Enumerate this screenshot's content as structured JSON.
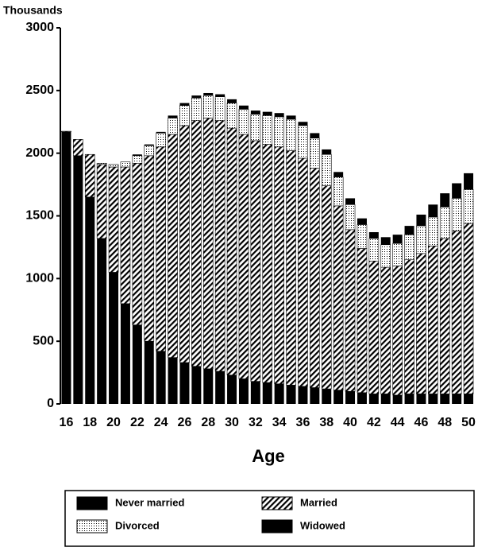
{
  "chart_data": {
    "type": "stacked-bar",
    "title": "Thousands",
    "x_label": "Age",
    "categories": [
      "16",
      null,
      "18",
      null,
      "20",
      null,
      "22",
      null,
      "24",
      null,
      "26",
      null,
      "28",
      null,
      "30",
      null,
      "32",
      null,
      "34",
      null,
      "36",
      null,
      "38",
      null,
      "40",
      null,
      "42",
      null,
      "44",
      null,
      "46",
      null,
      "48",
      null,
      "50"
    ],
    "series": [
      {
        "name": "Never married",
        "color": "#000000",
        "pattern": "solid",
        "values": [
          2170,
          1980,
          1650,
          1320,
          1050,
          800,
          630,
          500,
          420,
          370,
          330,
          300,
          280,
          260,
          230,
          200,
          180,
          170,
          160,
          150,
          140,
          130,
          120,
          110,
          100,
          90,
          80,
          80,
          70,
          80,
          80,
          80,
          80,
          80,
          80
        ]
      },
      {
        "name": "Married",
        "color": "#000000",
        "pattern": "hatch",
        "values": [
          5,
          130,
          340,
          590,
          840,
          1090,
          1290,
          1480,
          1630,
          1780,
          1890,
          1960,
          2000,
          2000,
          1970,
          1950,
          1920,
          1900,
          1890,
          1870,
          1820,
          1750,
          1620,
          1470,
          1290,
          1150,
          1060,
          1010,
          1030,
          1070,
          1120,
          1180,
          1240,
          1300,
          1360
        ]
      },
      {
        "name": "Divorced",
        "color": "#000000",
        "pattern": "dots",
        "values": [
          0,
          0,
          0,
          10,
          20,
          40,
          60,
          80,
          110,
          130,
          160,
          180,
          180,
          190,
          200,
          200,
          210,
          230,
          240,
          250,
          260,
          240,
          250,
          230,
          200,
          190,
          180,
          180,
          180,
          200,
          220,
          230,
          250,
          260,
          270
        ]
      },
      {
        "name": "Widowed",
        "color": "#000000",
        "pattern": "solid",
        "values": [
          0,
          0,
          0,
          0,
          0,
          0,
          10,
          10,
          10,
          20,
          20,
          20,
          20,
          20,
          30,
          30,
          30,
          30,
          30,
          30,
          30,
          40,
          40,
          40,
          50,
          50,
          50,
          60,
          70,
          70,
          90,
          100,
          110,
          120,
          130
        ]
      }
    ],
    "ylim": [
      0,
      3000
    ],
    "yticks": [
      0,
      500,
      1000,
      1500,
      2000,
      2500,
      3000
    ],
    "grid": false,
    "legend": "bottom"
  }
}
